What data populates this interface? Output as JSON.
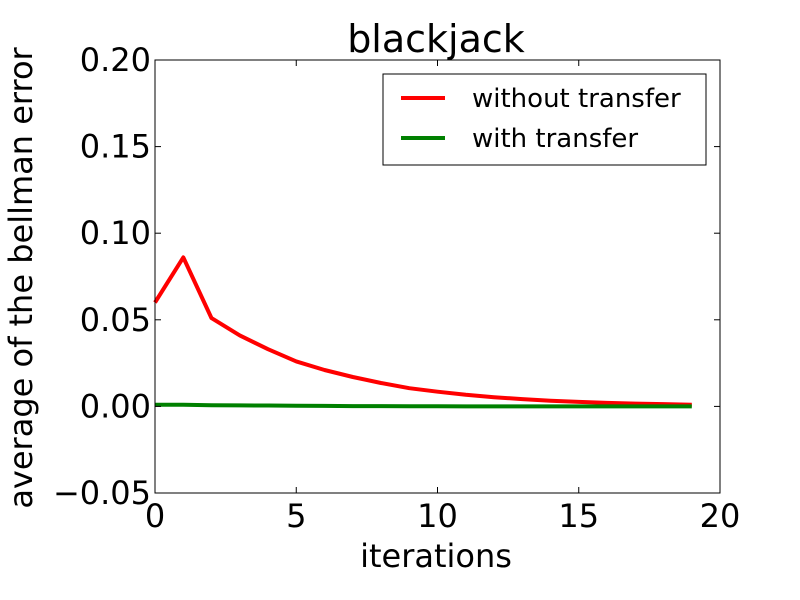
{
  "chart_data": {
    "type": "line",
    "title": "blackjack",
    "xlabel": "iterations",
    "ylabel": "average of the bellman error",
    "xlim": [
      0,
      20
    ],
    "ylim": [
      -0.05,
      0.2
    ],
    "xticks": [
      0,
      5,
      10,
      15,
      20
    ],
    "xtick_labels": [
      "0",
      "5",
      "10",
      "15",
      "20"
    ],
    "yticks": [
      -0.05,
      0.0,
      0.05,
      0.1,
      0.15,
      0.2
    ],
    "ytick_labels": [
      "−0.05",
      "0.00",
      "0.05",
      "0.10",
      "0.15",
      "0.20"
    ],
    "grid": false,
    "legend_position": "top-right",
    "x": [
      0,
      1,
      2,
      3,
      4,
      5,
      6,
      7,
      8,
      9,
      10,
      11,
      12,
      13,
      14,
      15,
      16,
      17,
      18,
      19
    ],
    "series": [
      {
        "name": "without transfer",
        "color": "#ff0000",
        "values": [
          0.06,
          0.086,
          0.051,
          0.041,
          0.033,
          0.026,
          0.021,
          0.017,
          0.0135,
          0.0105,
          0.0085,
          0.0067,
          0.0053,
          0.0042,
          0.0033,
          0.0026,
          0.002,
          0.0016,
          0.0013,
          0.001
        ]
      },
      {
        "name": "with transfer",
        "color": "#008000",
        "values": [
          0.001,
          0.0009,
          0.0007,
          0.0006,
          0.0005,
          0.0004,
          0.0003,
          0.0002,
          0.0002,
          0.0001,
          0.0001,
          0.0,
          0.0,
          0.0,
          0.0,
          0.0,
          0.0,
          0.0,
          0.0,
          0.0
        ]
      }
    ]
  }
}
